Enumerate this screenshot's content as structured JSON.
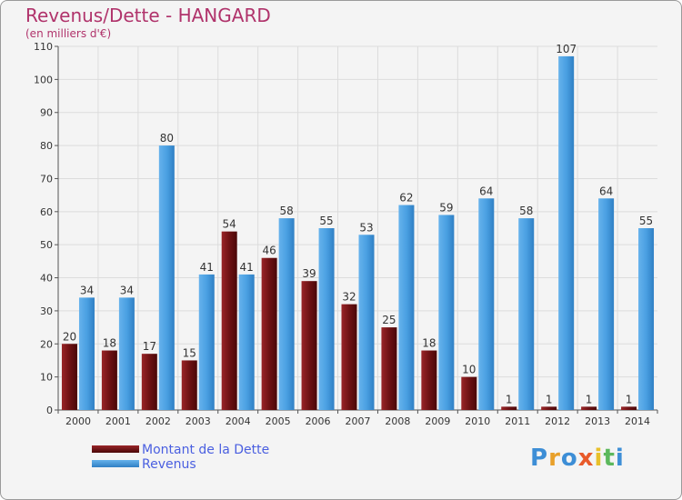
{
  "title": "Revenus/Dette - HANGARD",
  "subtitle": "(en milliers d'€)",
  "chart_data": {
    "type": "bar",
    "categories": [
      "2000",
      "2001",
      "2002",
      "2003",
      "2004",
      "2005",
      "2006",
      "2007",
      "2008",
      "2009",
      "2010",
      "2011",
      "2012",
      "2013",
      "2014"
    ],
    "series": [
      {
        "name": "Montant de la Dette",
        "color": "#7a1517",
        "values": [
          20,
          18,
          17,
          15,
          54,
          46,
          39,
          32,
          25,
          18,
          10,
          1,
          1,
          1,
          1
        ]
      },
      {
        "name": "Revenus",
        "color": "#3d95dc",
        "values": [
          34,
          34,
          80,
          41,
          41,
          58,
          55,
          53,
          62,
          59,
          64,
          58,
          107,
          64,
          55
        ]
      }
    ],
    "yticks": [
      0,
      10,
      20,
      30,
      40,
      50,
      60,
      70,
      80,
      90,
      100,
      110
    ],
    "ylim": [
      0,
      110
    ],
    "grid": true,
    "legend_position": "bottom-left"
  },
  "logo": {
    "letters": [
      "P",
      "r",
      "o",
      "x",
      "i",
      "t",
      "i"
    ],
    "colors": [
      "#3d8ed6",
      "#e8a02a",
      "#3d8ed6",
      "#e85a2a",
      "#e8c02a",
      "#5cb85c",
      "#3d8ed6"
    ]
  }
}
